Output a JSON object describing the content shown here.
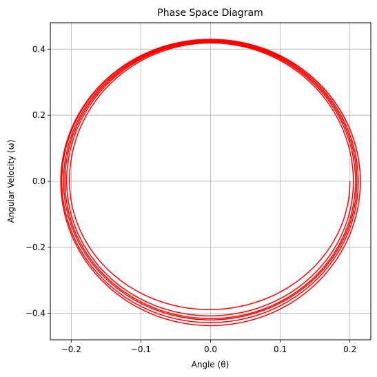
{
  "chart_data": {
    "type": "line",
    "title": "Phase Space Diagram",
    "xlabel": "Angle (θ)",
    "ylabel": "Angular Velocity (ω)",
    "xlim": [
      -0.23,
      0.23
    ],
    "ylim": [
      -0.48,
      0.48
    ],
    "xticks": [
      -0.2,
      -0.1,
      0.0,
      0.1,
      0.2
    ],
    "xtick_labels": [
      "−0.2",
      "−0.1",
      "0.0",
      "0.1",
      "0.2"
    ],
    "yticks": [
      -0.4,
      -0.2,
      0.0,
      0.2,
      0.4
    ],
    "ytick_labels": [
      "−0.4",
      "−0.2",
      "0.0",
      "0.2",
      "0.4"
    ],
    "grid": true,
    "legend": null,
    "series": [
      {
        "color": "#ff0000",
        "orbits": [
          {
            "theta_amplitude": 0.2,
            "omega_max": 0.415,
            "omega_min": -0.383
          },
          {
            "theta_amplitude": 0.205,
            "omega_max": 0.42,
            "omega_min": -0.405
          },
          {
            "theta_amplitude": 0.208,
            "omega_max": 0.422,
            "omega_min": -0.415
          },
          {
            "theta_amplitude": 0.21,
            "omega_max": 0.425,
            "omega_min": -0.418
          },
          {
            "theta_amplitude": 0.212,
            "omega_max": 0.428,
            "omega_min": -0.425
          },
          {
            "theta_amplitude": 0.215,
            "omega_max": 0.43,
            "omega_min": -0.437
          }
        ],
        "start_point": [
          0.2,
          0.0
        ]
      }
    ]
  }
}
